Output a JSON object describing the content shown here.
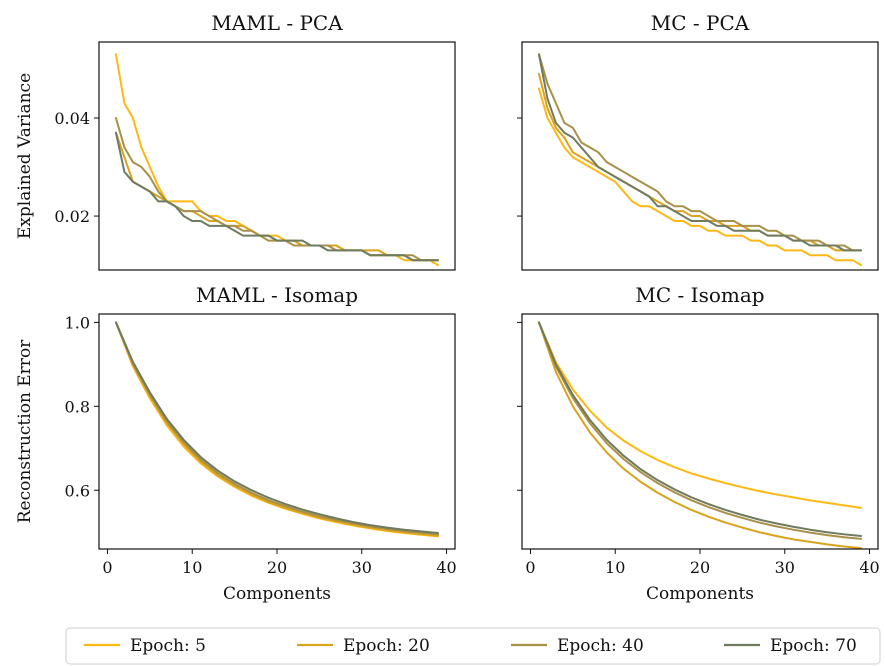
{
  "chart_data": [
    {
      "type": "line",
      "title": "MAML - PCA",
      "ylabel": "Explained Variance",
      "xlabel": "",
      "xlim": [
        -1,
        41
      ],
      "ylim": [
        0.009,
        0.0555
      ],
      "yticks": [
        0.02,
        0.04
      ],
      "ytick_labels": [
        "0.02",
        "0.04"
      ],
      "show_yticklabels": true,
      "show_xticklabels": false,
      "grid": false,
      "x": [
        1,
        2,
        3,
        4,
        5,
        6,
        7,
        8,
        9,
        10,
        11,
        12,
        13,
        14,
        15,
        16,
        17,
        18,
        19,
        20,
        21,
        22,
        23,
        24,
        25,
        26,
        27,
        28,
        29,
        30,
        31,
        32,
        33,
        34,
        35,
        36,
        37,
        38,
        39
      ],
      "series": [
        {
          "name": "Epoch: 5",
          "color": "#FDB813",
          "values": [
            0.053,
            0.043,
            0.04,
            0.034,
            0.03,
            0.026,
            0.023,
            0.023,
            0.023,
            0.023,
            0.021,
            0.02,
            0.02,
            0.019,
            0.019,
            0.018,
            0.017,
            0.016,
            0.016,
            0.016,
            0.015,
            0.015,
            0.014,
            0.014,
            0.014,
            0.014,
            0.014,
            0.013,
            0.013,
            0.013,
            0.012,
            0.012,
            0.012,
            0.012,
            0.011,
            0.011,
            0.011,
            0.011,
            0.01
          ]
        },
        {
          "name": "Epoch: 20",
          "color": "#DBA21E",
          "values": [
            0.037,
            0.032,
            0.027,
            0.026,
            0.025,
            0.024,
            0.023,
            0.022,
            0.021,
            0.021,
            0.02,
            0.019,
            0.019,
            0.018,
            0.018,
            0.018,
            0.017,
            0.016,
            0.016,
            0.015,
            0.015,
            0.015,
            0.014,
            0.014,
            0.014,
            0.014,
            0.014,
            0.013,
            0.013,
            0.013,
            0.013,
            0.013,
            0.012,
            0.012,
            0.012,
            0.011,
            0.011,
            0.011,
            0.011
          ]
        },
        {
          "name": "Epoch: 40",
          "color": "#A99048",
          "values": [
            0.04,
            0.034,
            0.031,
            0.03,
            0.028,
            0.025,
            0.023,
            0.022,
            0.021,
            0.021,
            0.021,
            0.02,
            0.019,
            0.018,
            0.018,
            0.017,
            0.017,
            0.016,
            0.015,
            0.015,
            0.015,
            0.014,
            0.014,
            0.014,
            0.014,
            0.014,
            0.013,
            0.013,
            0.013,
            0.013,
            0.012,
            0.012,
            0.012,
            0.012,
            0.012,
            0.012,
            0.011,
            0.011,
            0.011
          ]
        },
        {
          "name": "Epoch: 70",
          "color": "#6E7B5E",
          "values": [
            0.037,
            0.029,
            0.027,
            0.026,
            0.025,
            0.023,
            0.023,
            0.022,
            0.02,
            0.019,
            0.019,
            0.018,
            0.018,
            0.018,
            0.017,
            0.016,
            0.016,
            0.016,
            0.016,
            0.015,
            0.015,
            0.015,
            0.015,
            0.014,
            0.014,
            0.013,
            0.013,
            0.013,
            0.013,
            0.013,
            0.012,
            0.012,
            0.012,
            0.012,
            0.012,
            0.011,
            0.011,
            0.011,
            0.011
          ]
        }
      ]
    },
    {
      "type": "line",
      "title": "MC - PCA",
      "ylabel": "",
      "xlabel": "",
      "xlim": [
        -1,
        41
      ],
      "ylim": [
        0.009,
        0.0555
      ],
      "yticks": [
        0.02,
        0.04
      ],
      "ytick_labels": [
        "0.02",
        "0.04"
      ],
      "show_yticklabels": false,
      "show_xticklabels": false,
      "grid": false,
      "x": [
        1,
        2,
        3,
        4,
        5,
        6,
        7,
        8,
        9,
        10,
        11,
        12,
        13,
        14,
        15,
        16,
        17,
        18,
        19,
        20,
        21,
        22,
        23,
        24,
        25,
        26,
        27,
        28,
        29,
        30,
        31,
        32,
        33,
        34,
        35,
        36,
        37,
        38,
        39
      ],
      "series": [
        {
          "name": "Epoch: 5",
          "color": "#FDB813",
          "values": [
            0.046,
            0.04,
            0.037,
            0.034,
            0.032,
            0.031,
            0.03,
            0.029,
            0.028,
            0.027,
            0.025,
            0.023,
            0.022,
            0.022,
            0.021,
            0.02,
            0.019,
            0.019,
            0.018,
            0.018,
            0.017,
            0.017,
            0.016,
            0.016,
            0.016,
            0.015,
            0.015,
            0.014,
            0.014,
            0.013,
            0.013,
            0.013,
            0.012,
            0.012,
            0.012,
            0.011,
            0.011,
            0.011,
            0.01
          ]
        },
        {
          "name": "Epoch: 20",
          "color": "#DBA21E",
          "values": [
            0.049,
            0.042,
            0.038,
            0.036,
            0.033,
            0.032,
            0.031,
            0.03,
            0.029,
            0.028,
            0.027,
            0.026,
            0.025,
            0.024,
            0.023,
            0.022,
            0.021,
            0.021,
            0.02,
            0.02,
            0.019,
            0.019,
            0.018,
            0.018,
            0.018,
            0.017,
            0.017,
            0.016,
            0.016,
            0.016,
            0.015,
            0.015,
            0.015,
            0.014,
            0.014,
            0.013,
            0.013,
            0.013,
            0.013
          ]
        },
        {
          "name": "Epoch: 40",
          "color": "#A99048",
          "values": [
            0.053,
            0.047,
            0.043,
            0.039,
            0.038,
            0.035,
            0.034,
            0.033,
            0.031,
            0.03,
            0.029,
            0.028,
            0.027,
            0.026,
            0.025,
            0.023,
            0.022,
            0.022,
            0.021,
            0.021,
            0.02,
            0.019,
            0.019,
            0.019,
            0.018,
            0.018,
            0.018,
            0.017,
            0.017,
            0.016,
            0.016,
            0.015,
            0.015,
            0.015,
            0.014,
            0.014,
            0.014,
            0.013,
            0.013
          ]
        },
        {
          "name": "Epoch: 70",
          "color": "#6E7B5E",
          "values": [
            0.053,
            0.044,
            0.039,
            0.037,
            0.036,
            0.034,
            0.032,
            0.03,
            0.029,
            0.028,
            0.027,
            0.026,
            0.025,
            0.024,
            0.022,
            0.022,
            0.021,
            0.02,
            0.019,
            0.019,
            0.019,
            0.018,
            0.018,
            0.017,
            0.017,
            0.017,
            0.017,
            0.016,
            0.016,
            0.016,
            0.015,
            0.015,
            0.014,
            0.014,
            0.014,
            0.014,
            0.013,
            0.013,
            0.013
          ]
        }
      ]
    },
    {
      "type": "line",
      "title": "MAML - Isomap",
      "ylabel": "Reconstruction Error",
      "xlabel": "Components",
      "xlim": [
        -1,
        41
      ],
      "ylim": [
        0.46,
        1.02
      ],
      "yticks": [
        0.6,
        0.8,
        1.0
      ],
      "ytick_labels": [
        "0.6",
        "0.8",
        "1.0"
      ],
      "xticks": [
        0,
        10,
        20,
        30,
        40
      ],
      "xtick_labels": [
        "0",
        "10",
        "20",
        "30",
        "40"
      ],
      "show_yticklabels": true,
      "show_xticklabels": true,
      "grid": false,
      "x": [
        1,
        3,
        5,
        7,
        9,
        11,
        13,
        15,
        17,
        19,
        21,
        23,
        25,
        27,
        29,
        31,
        33,
        35,
        37,
        39
      ],
      "series": [
        {
          "name": "Epoch: 5",
          "color": "#FDB813",
          "values": [
            1.0,
            0.895,
            0.819,
            0.755,
            0.704,
            0.664,
            0.633,
            0.608,
            0.587,
            0.57,
            0.556,
            0.544,
            0.533,
            0.524,
            0.516,
            0.509,
            0.503,
            0.498,
            0.494,
            0.49
          ]
        },
        {
          "name": "Epoch: 20",
          "color": "#DBA21E",
          "values": [
            1.0,
            0.9,
            0.825,
            0.76,
            0.71,
            0.668,
            0.636,
            0.611,
            0.59,
            0.572,
            0.558,
            0.546,
            0.535,
            0.526,
            0.518,
            0.511,
            0.505,
            0.5,
            0.496,
            0.492
          ]
        },
        {
          "name": "Epoch: 40",
          "color": "#A99048",
          "values": [
            1.0,
            0.902,
            0.828,
            0.764,
            0.714,
            0.673,
            0.641,
            0.615,
            0.594,
            0.576,
            0.562,
            0.549,
            0.538,
            0.529,
            0.521,
            0.514,
            0.508,
            0.503,
            0.499,
            0.495
          ]
        },
        {
          "name": "Epoch: 70",
          "color": "#6E7B5E",
          "values": [
            1.0,
            0.906,
            0.833,
            0.77,
            0.72,
            0.679,
            0.647,
            0.621,
            0.6,
            0.582,
            0.567,
            0.554,
            0.543,
            0.533,
            0.524,
            0.517,
            0.511,
            0.506,
            0.502,
            0.498
          ]
        }
      ]
    },
    {
      "type": "line",
      "title": "MC - Isomap",
      "ylabel": "",
      "xlabel": "Components",
      "xlim": [
        -1,
        41
      ],
      "ylim": [
        0.46,
        1.02
      ],
      "yticks": [
        0.6,
        0.8,
        1.0
      ],
      "ytick_labels": [
        "0.6",
        "0.8",
        "1.0"
      ],
      "xticks": [
        0,
        10,
        20,
        30,
        40
      ],
      "xtick_labels": [
        "0",
        "10",
        "20",
        "30",
        "40"
      ],
      "show_yticklabels": false,
      "show_xticklabels": true,
      "grid": false,
      "x": [
        1,
        3,
        5,
        7,
        9,
        11,
        13,
        15,
        17,
        19,
        21,
        23,
        25,
        27,
        29,
        31,
        33,
        35,
        37,
        39
      ],
      "series": [
        {
          "name": "Epoch: 5",
          "color": "#FDB813",
          "values": [
            1.0,
            0.905,
            0.84,
            0.79,
            0.749,
            0.718,
            0.693,
            0.672,
            0.655,
            0.64,
            0.628,
            0.617,
            0.607,
            0.598,
            0.59,
            0.583,
            0.576,
            0.57,
            0.564,
            0.558
          ]
        },
        {
          "name": "Epoch: 20",
          "color": "#DBA21E",
          "values": [
            1.0,
            0.882,
            0.8,
            0.738,
            0.69,
            0.651,
            0.62,
            0.594,
            0.572,
            0.553,
            0.537,
            0.523,
            0.511,
            0.5,
            0.491,
            0.483,
            0.477,
            0.471,
            0.466,
            0.462
          ]
        },
        {
          "name": "Epoch: 40",
          "color": "#A99048",
          "values": [
            1.0,
            0.895,
            0.82,
            0.76,
            0.712,
            0.674,
            0.643,
            0.617,
            0.595,
            0.576,
            0.56,
            0.546,
            0.534,
            0.523,
            0.514,
            0.506,
            0.499,
            0.493,
            0.488,
            0.484
          ]
        },
        {
          "name": "Epoch: 70",
          "color": "#6E7B5E",
          "values": [
            1.0,
            0.9,
            0.827,
            0.768,
            0.72,
            0.682,
            0.65,
            0.624,
            0.602,
            0.583,
            0.567,
            0.553,
            0.541,
            0.53,
            0.521,
            0.513,
            0.506,
            0.5,
            0.495,
            0.491
          ]
        }
      ]
    }
  ],
  "legend": {
    "placement": "bottom",
    "entries": [
      {
        "label": "Epoch: 5",
        "color": "#FDB813"
      },
      {
        "label": "Epoch: 20",
        "color": "#DBA21E"
      },
      {
        "label": "Epoch: 40",
        "color": "#A99048"
      },
      {
        "label": "Epoch: 70",
        "color": "#6E7B5E"
      }
    ]
  }
}
